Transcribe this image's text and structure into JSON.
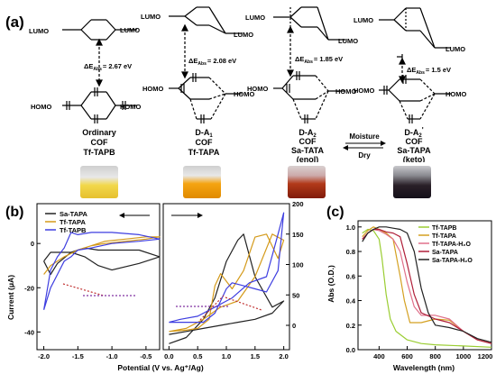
{
  "panel_a": {
    "label": "(a)",
    "lumo": "LUMO",
    "homo": "HOMO",
    "moisture": "Moisture",
    "dry": "Dry",
    "gaps": [
      {
        "delta": "ΔE",
        "sub": "Abs",
        "value": "= 2.67 eV"
      },
      {
        "delta": "ΔE",
        "sub": "Abs",
        "value": "= 2.08 eV"
      },
      {
        "delta": "ΔE",
        "sub": "Abs",
        "value": "= 1.85 eV"
      },
      {
        "delta": "ΔE",
        "sub": "Abs",
        "value": "= 1.5 eV"
      }
    ],
    "names": [
      {
        "l1": "Ordinary",
        "l2": "COF",
        "l3": "Tf-TAPB",
        "l4": ""
      },
      {
        "l1": "D-A",
        "l1sub": "1",
        "l2": "COF",
        "l3": "Tf-TAPA",
        "l4": ""
      },
      {
        "l1": "D-A",
        "l1sub": "2",
        "l2": "COF",
        "l3": "Sa-TATA",
        "l4": "(enol)"
      },
      {
        "l1": "D-A",
        "l1sub": "2",
        "l1sup": "'",
        "l2": "COF",
        "l3": "Sa-TAPA",
        "l4": "(keto)"
      }
    ],
    "vial_colors": [
      "#f2d84a",
      "#f5a411",
      "#b23a1a",
      "#2a2028"
    ]
  },
  "panel_b": {
    "label": "(b)",
    "ylabel": "Current (μA)",
    "xlabel": "Potential (V vs. Ag⁺/Ag)",
    "left_y_ticks": [
      "0",
      "-20",
      "-40"
    ],
    "left_x_ticks": [
      "-2.0",
      "-1.5",
      "-1.0",
      "-0.5"
    ],
    "right_y_ticks": [
      "200",
      "150",
      "100",
      "50",
      "0"
    ],
    "right_x_ticks": [
      "0.0",
      "0.5",
      "1.0",
      "1.5",
      "2.0"
    ],
    "legend": [
      {
        "name": "Sa-TAPA",
        "color": "#222222"
      },
      {
        "name": "Tf-TAPA",
        "color": "#d49a1a"
      },
      {
        "name": "Tf-TAPB",
        "color": "#3e3ee0"
      }
    ]
  },
  "panel_c": {
    "label": "(c)",
    "ylabel": "Abs (O.D.)",
    "xlabel": "Wavelength (nm)",
    "y_ticks": [
      "1.0",
      "0.8",
      "0.6",
      "0.4",
      "0.2",
      "0.0"
    ],
    "x_ticks": [
      "400",
      "600",
      "800",
      "1000",
      "1200"
    ],
    "legend": [
      {
        "name": "Tf-TAPB",
        "color": "#9acd32"
      },
      {
        "name": "Tf-TAPA",
        "color": "#d4a020"
      },
      {
        "name": "Tf-TAPA-H₂O",
        "color": "#e0708a"
      },
      {
        "name": "Sa-TAPA",
        "color": "#b0203a"
      },
      {
        "name": "Sa-TAPA-H₂O",
        "color": "#222222"
      }
    ]
  },
  "chart_data": [
    {
      "type": "line",
      "xlabel": "Potential (V vs. Ag⁺/Ag)",
      "ylabel": "Current (μA)",
      "xlim": [
        -2.1,
        -0.3
      ],
      "ylim": [
        -48,
        18
      ],
      "series": [
        {
          "name": "Sa-TAPA",
          "x": [
            -2.0,
            -1.9,
            -1.8,
            -1.6,
            -1.4,
            -1.2,
            -1.0,
            -0.6,
            -0.3,
            -0.6,
            -1.0,
            -1.2,
            -1.4,
            -1.6,
            -1.8,
            -1.9,
            -2.0
          ],
          "y": [
            -8,
            -4,
            -4,
            -4,
            -6,
            -10,
            -12,
            -9,
            -6,
            -3,
            -3,
            -3,
            -2,
            -4,
            -9,
            -14,
            -8
          ]
        },
        {
          "name": "Tf-TAPA",
          "x": [
            -2.0,
            -1.9,
            -1.7,
            -1.5,
            -1.3,
            -1.1,
            -0.8,
            -0.5,
            -0.3,
            -0.5,
            -0.8,
            -1.1,
            -1.3,
            -1.5,
            -1.7,
            -1.9,
            -2.0
          ],
          "y": [
            -14,
            -10,
            -6,
            -3,
            -1,
            1,
            2,
            3,
            3,
            2,
            1,
            0,
            -1,
            -3,
            -6,
            -10,
            -14
          ]
        },
        {
          "name": "Tf-TAPB",
          "x": [
            -2.0,
            -1.9,
            -1.8,
            -1.7,
            -1.6,
            -1.5,
            -1.3,
            -1.0,
            -0.6,
            -0.3,
            -0.6,
            -1.0,
            -1.3,
            -1.5,
            -1.6,
            -1.7,
            -1.8,
            -1.9,
            -2.0
          ],
          "y": [
            -30,
            -20,
            -14,
            -8,
            -6,
            -3,
            -2,
            0,
            1,
            2,
            4,
            5,
            5,
            4,
            5,
            -2,
            -6,
            -12,
            -30
          ]
        }
      ]
    },
    {
      "type": "line",
      "xlabel": "Potential (V vs. Ag⁺/Ag)",
      "xlim": [
        -0.1,
        2.1
      ],
      "ylim": [
        -40,
        200
      ],
      "series": [
        {
          "name": "Sa-TAPA",
          "x": [
            0.0,
            0.3,
            0.6,
            0.8,
            1.0,
            1.2,
            1.3,
            1.5,
            1.8,
            2.0,
            1.8,
            1.5,
            1.2,
            0.9,
            0.6,
            0.3,
            0.0
          ],
          "y": [
            -30,
            -20,
            10,
            45,
            105,
            140,
            150,
            80,
            30,
            40,
            20,
            10,
            5,
            0,
            -5,
            -10,
            -15
          ]
        },
        {
          "name": "Tf-TAPA",
          "x": [
            0.0,
            0.3,
            0.5,
            0.7,
            0.8,
            0.9,
            1.1,
            1.3,
            1.5,
            1.7,
            1.9,
            2.0,
            1.8,
            1.5,
            1.2,
            0.9,
            0.6,
            0.3,
            0.0
          ],
          "y": [
            -10,
            -8,
            -5,
            10,
            65,
            85,
            60,
            90,
            145,
            150,
            110,
            140,
            150,
            80,
            40,
            30,
            10,
            -5,
            -10
          ]
        },
        {
          "name": "Tf-TAPB",
          "x": [
            0.0,
            0.3,
            0.6,
            0.8,
            1.0,
            1.1,
            1.3,
            1.5,
            1.7,
            1.9,
            2.0,
            1.9,
            1.7,
            1.4,
            1.1,
            0.8,
            0.5,
            0.2,
            0.0
          ],
          "y": [
            5,
            5,
            5,
            20,
            60,
            70,
            65,
            60,
            55,
            90,
            185,
            150,
            80,
            70,
            45,
            30,
            15,
            10,
            5
          ]
        }
      ]
    },
    {
      "type": "line",
      "xlabel": "Wavelength (nm)",
      "ylabel": "Abs (O.D.)",
      "xlim": [
        250,
        1200
      ],
      "ylim": [
        0,
        1.05
      ],
      "series": [
        {
          "name": "Tf-TAPB",
          "x": [
            280,
            320,
            360,
            400,
            420,
            450,
            480,
            520,
            600,
            700,
            800,
            1000,
            1200
          ],
          "y": [
            0.95,
            0.98,
            0.97,
            0.9,
            0.75,
            0.45,
            0.25,
            0.15,
            0.08,
            0.05,
            0.04,
            0.03,
            0.02
          ]
        },
        {
          "name": "Tf-TAPA",
          "x": [
            280,
            320,
            360,
            400,
            450,
            500,
            550,
            580,
            620,
            700,
            800,
            900,
            1000,
            1100,
            1200
          ],
          "y": [
            0.92,
            0.97,
            1.0,
            0.98,
            0.95,
            0.9,
            0.6,
            0.4,
            0.22,
            0.22,
            0.25,
            0.24,
            0.15,
            0.08,
            0.05
          ]
        },
        {
          "name": "Tf-TAPA-H₂O",
          "x": [
            280,
            320,
            360,
            400,
            450,
            500,
            550,
            600,
            650,
            700,
            800,
            900,
            1000,
            1100,
            1200
          ],
          "y": [
            0.9,
            0.95,
            0.98,
            0.97,
            0.94,
            0.9,
            0.8,
            0.55,
            0.35,
            0.28,
            0.28,
            0.25,
            0.15,
            0.08,
            0.05
          ]
        },
        {
          "name": "Sa-TAPA",
          "x": [
            280,
            320,
            360,
            400,
            450,
            500,
            550,
            600,
            650,
            700,
            800,
            900,
            1000,
            1100,
            1200
          ],
          "y": [
            0.9,
            0.95,
            0.98,
            0.98,
            0.96,
            0.95,
            0.92,
            0.7,
            0.45,
            0.3,
            0.25,
            0.22,
            0.15,
            0.08,
            0.05
          ]
        },
        {
          "name": "Sa-TAPA-H₂O",
          "x": [
            280,
            320,
            360,
            400,
            450,
            500,
            550,
            600,
            650,
            700,
            750,
            800,
            900,
            1000,
            1100,
            1200
          ],
          "y": [
            0.88,
            0.95,
            0.98,
            1.0,
            1.0,
            0.99,
            0.98,
            0.95,
            0.8,
            0.5,
            0.3,
            0.2,
            0.18,
            0.15,
            0.09,
            0.06
          ]
        }
      ]
    }
  ]
}
